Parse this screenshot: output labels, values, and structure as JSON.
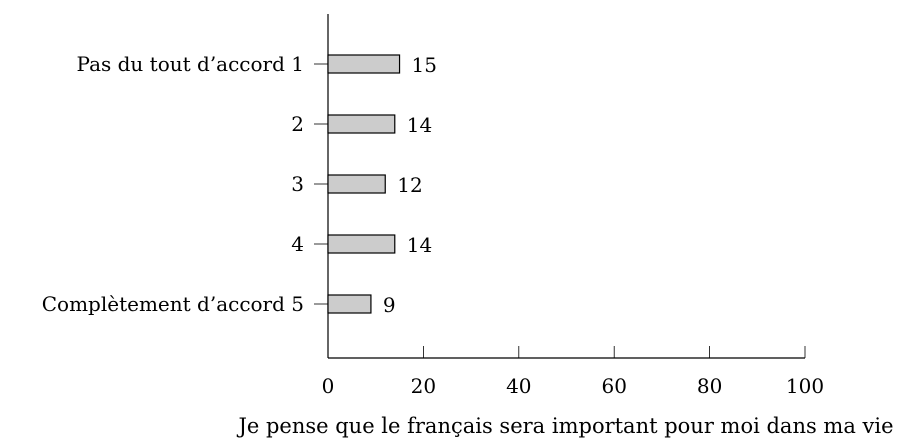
{
  "chart_data": {
    "type": "bar",
    "orientation": "horizontal",
    "categories": [
      "Pas du tout d’accord 1",
      "2",
      "3",
      "4",
      "Complètement d’accord 5"
    ],
    "values": [
      15,
      14,
      12,
      14,
      9
    ],
    "xlabel": "Je pense que le français sera important pour moi dans ma vie",
    "ylabel": "",
    "xlim": [
      0,
      100
    ],
    "xticks": [
      0,
      20,
      40,
      60,
      80,
      100
    ],
    "grid": false,
    "bar_color": "#cccccc",
    "data_labels": true
  }
}
